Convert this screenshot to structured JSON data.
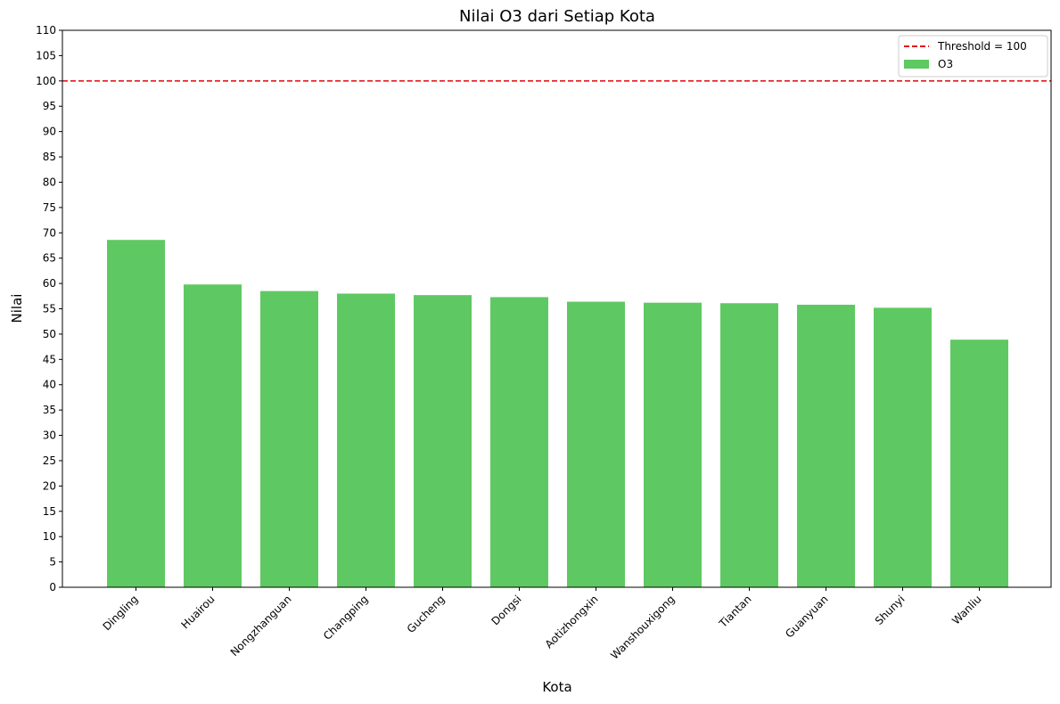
{
  "chart_data": {
    "type": "bar",
    "title": "Nilai O3 dari Setiap Kota",
    "xlabel": "Kota",
    "ylabel": "Nilai",
    "ylim": [
      0,
      110
    ],
    "yticks": [
      0,
      5,
      10,
      15,
      20,
      25,
      30,
      35,
      40,
      45,
      50,
      55,
      60,
      65,
      70,
      75,
      80,
      85,
      90,
      95,
      100,
      105,
      110
    ],
    "grid": false,
    "legend_position": "top-right",
    "categories": [
      "Dingling",
      "Huairou",
      "Nongzhanguan",
      "Changping",
      "Gucheng",
      "Dongsi",
      "Aotizhongxin",
      "Wanshouxigong",
      "Tiantan",
      "Guanyuan",
      "Shunyi",
      "Wanliu"
    ],
    "series": [
      {
        "name": "O3",
        "color": "#5ec962",
        "values": [
          68.6,
          59.8,
          58.5,
          58.0,
          57.7,
          57.3,
          56.4,
          56.2,
          56.1,
          55.8,
          55.2,
          48.9
        ]
      }
    ],
    "threshold": {
      "label": "Threshold = 100",
      "value": 100,
      "color": "#e31a1c",
      "style": "dashed"
    }
  }
}
